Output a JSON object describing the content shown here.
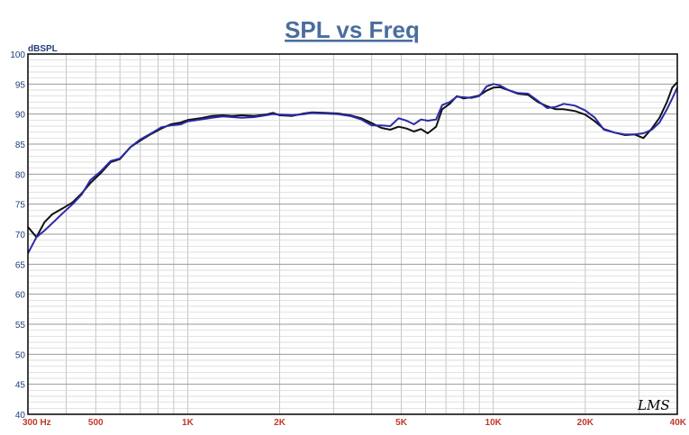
{
  "chart_data": {
    "type": "line",
    "title": "SPL vs Freq",
    "ylabel": "dBSPL",
    "xlabel": "",
    "xscale": "log",
    "xlim": [
      300,
      40000
    ],
    "ylim": [
      40,
      100
    ],
    "grid": true,
    "x_tick_values": [
      300,
      500,
      1000,
      2000,
      5000,
      10000,
      20000,
      40000
    ],
    "x_tick_labels": [
      "300  Hz",
      "500",
      "1K",
      "2K",
      "5K",
      "10K",
      "20K",
      "40K"
    ],
    "y_ticks": [
      40,
      45,
      50,
      55,
      60,
      65,
      70,
      75,
      80,
      85,
      90,
      95,
      100
    ],
    "watermark": "LMS",
    "series": [
      {
        "color": "#111111",
        "points": [
          [
            300,
            71.2
          ],
          [
            320,
            69.5
          ],
          [
            340,
            72
          ],
          [
            360,
            73.3
          ],
          [
            390,
            74.3
          ],
          [
            420,
            75.3
          ],
          [
            450,
            76.8
          ],
          [
            480,
            78.5
          ],
          [
            520,
            80.2
          ],
          [
            560,
            82
          ],
          [
            600,
            82.5
          ],
          [
            650,
            84.5
          ],
          [
            700,
            85.6
          ],
          [
            760,
            86.7
          ],
          [
            820,
            87.6
          ],
          [
            880,
            88.3
          ],
          [
            950,
            88.6
          ],
          [
            1000,
            89
          ],
          [
            1100,
            89.3
          ],
          [
            1200,
            89.7
          ],
          [
            1300,
            89.8
          ],
          [
            1400,
            89.7
          ],
          [
            1500,
            89.8
          ],
          [
            1650,
            89.7
          ],
          [
            1800,
            89.9
          ],
          [
            1900,
            90.2
          ],
          [
            2000,
            89.8
          ],
          [
            2200,
            89.7
          ],
          [
            2400,
            90.1
          ],
          [
            2550,
            90.3
          ],
          [
            2800,
            90.2
          ],
          [
            3100,
            90.1
          ],
          [
            3400,
            89.8
          ],
          [
            3700,
            89.3
          ],
          [
            4000,
            88.5
          ],
          [
            4300,
            87.7
          ],
          [
            4600,
            87.4
          ],
          [
            4900,
            87.9
          ],
          [
            5200,
            87.6
          ],
          [
            5500,
            87.1
          ],
          [
            5800,
            87.5
          ],
          [
            6100,
            86.8
          ],
          [
            6500,
            87.9
          ],
          [
            6800,
            90.8
          ],
          [
            7200,
            91.7
          ],
          [
            7600,
            93.0
          ],
          [
            8000,
            92.6
          ],
          [
            8500,
            92.8
          ],
          [
            9000,
            93.1
          ],
          [
            9500,
            93.9
          ],
          [
            10000,
            94.4
          ],
          [
            10500,
            94.5
          ],
          [
            11200,
            94.0
          ],
          [
            12000,
            93.4
          ],
          [
            13000,
            93.2
          ],
          [
            14000,
            92.0
          ],
          [
            15000,
            91.3
          ],
          [
            16000,
            90.8
          ],
          [
            17000,
            90.8
          ],
          [
            18500,
            90.5
          ],
          [
            20000,
            89.9
          ],
          [
            21500,
            88.8
          ],
          [
            23000,
            87.5
          ],
          [
            25000,
            86.9
          ],
          [
            27000,
            86.5
          ],
          [
            29000,
            86.6
          ],
          [
            31000,
            86.0
          ],
          [
            33000,
            87.6
          ],
          [
            35000,
            89.4
          ],
          [
            37000,
            92.0
          ],
          [
            38500,
            94.4
          ],
          [
            40000,
            95.3
          ]
        ]
      },
      {
        "color": "#2a2aa8",
        "points": [
          [
            300,
            66.8
          ],
          [
            320,
            69.5
          ],
          [
            340,
            70.6
          ],
          [
            360,
            71.8
          ],
          [
            390,
            73.5
          ],
          [
            420,
            75.0
          ],
          [
            450,
            76.6
          ],
          [
            480,
            79.0
          ],
          [
            520,
            80.5
          ],
          [
            560,
            82.2
          ],
          [
            600,
            82.6
          ],
          [
            650,
            84.5
          ],
          [
            700,
            85.8
          ],
          [
            760,
            86.8
          ],
          [
            820,
            87.8
          ],
          [
            880,
            88.1
          ],
          [
            950,
            88.3
          ],
          [
            1000,
            88.8
          ],
          [
            1100,
            89.1
          ],
          [
            1200,
            89.4
          ],
          [
            1300,
            89.6
          ],
          [
            1400,
            89.5
          ],
          [
            1500,
            89.4
          ],
          [
            1650,
            89.5
          ],
          [
            1800,
            89.8
          ],
          [
            1900,
            90.0
          ],
          [
            2000,
            89.9
          ],
          [
            2200,
            89.8
          ],
          [
            2400,
            90.0
          ],
          [
            2550,
            90.2
          ],
          [
            2800,
            90.1
          ],
          [
            3100,
            90.0
          ],
          [
            3400,
            89.7
          ],
          [
            3700,
            89.1
          ],
          [
            4000,
            88.1
          ],
          [
            4300,
            88.1
          ],
          [
            4600,
            88.0
          ],
          [
            4900,
            89.3
          ],
          [
            5200,
            88.9
          ],
          [
            5500,
            88.3
          ],
          [
            5800,
            89.1
          ],
          [
            6100,
            88.9
          ],
          [
            6500,
            89.1
          ],
          [
            6800,
            91.5
          ],
          [
            7200,
            92.0
          ],
          [
            7600,
            92.9
          ],
          [
            8000,
            92.8
          ],
          [
            8500,
            92.7
          ],
          [
            9000,
            93.0
          ],
          [
            9500,
            94.6
          ],
          [
            10000,
            95.0
          ],
          [
            10500,
            94.8
          ],
          [
            11200,
            94.0
          ],
          [
            12000,
            93.5
          ],
          [
            13000,
            93.4
          ],
          [
            14000,
            92.2
          ],
          [
            15000,
            91.0
          ],
          [
            16000,
            91.2
          ],
          [
            17000,
            91.7
          ],
          [
            18500,
            91.4
          ],
          [
            20000,
            90.6
          ],
          [
            21500,
            89.4
          ],
          [
            23000,
            87.4
          ],
          [
            25000,
            86.9
          ],
          [
            27000,
            86.6
          ],
          [
            29000,
            86.6
          ],
          [
            31000,
            86.8
          ],
          [
            33000,
            87.4
          ],
          [
            35000,
            88.6
          ],
          [
            37000,
            90.8
          ],
          [
            38500,
            92.6
          ],
          [
            40000,
            94.4
          ]
        ]
      }
    ]
  }
}
